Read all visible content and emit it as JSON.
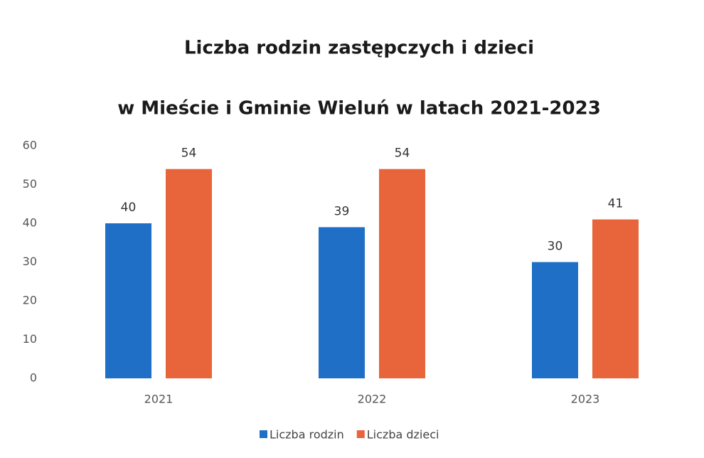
{
  "chart_data": {
    "type": "bar",
    "title": "Liczba rodzin zastępczych i dzieci",
    "subtitle": "w Mieście i Gminie Wieluń w latach 2021-2023",
    "categories": [
      "2021",
      "2022",
      "2023"
    ],
    "series": [
      {
        "name": "Liczba rodzin",
        "color": "#1f6fc6",
        "values": [
          40,
          39,
          30
        ]
      },
      {
        "name": "Liczba dzieci",
        "color": "#e8643a",
        "values": [
          54,
          54,
          41
        ]
      }
    ],
    "ylim": [
      0,
      60
    ],
    "yticks": [
      0,
      10,
      20,
      30,
      40,
      50,
      60
    ],
    "grid": false,
    "legend": "bottom"
  }
}
